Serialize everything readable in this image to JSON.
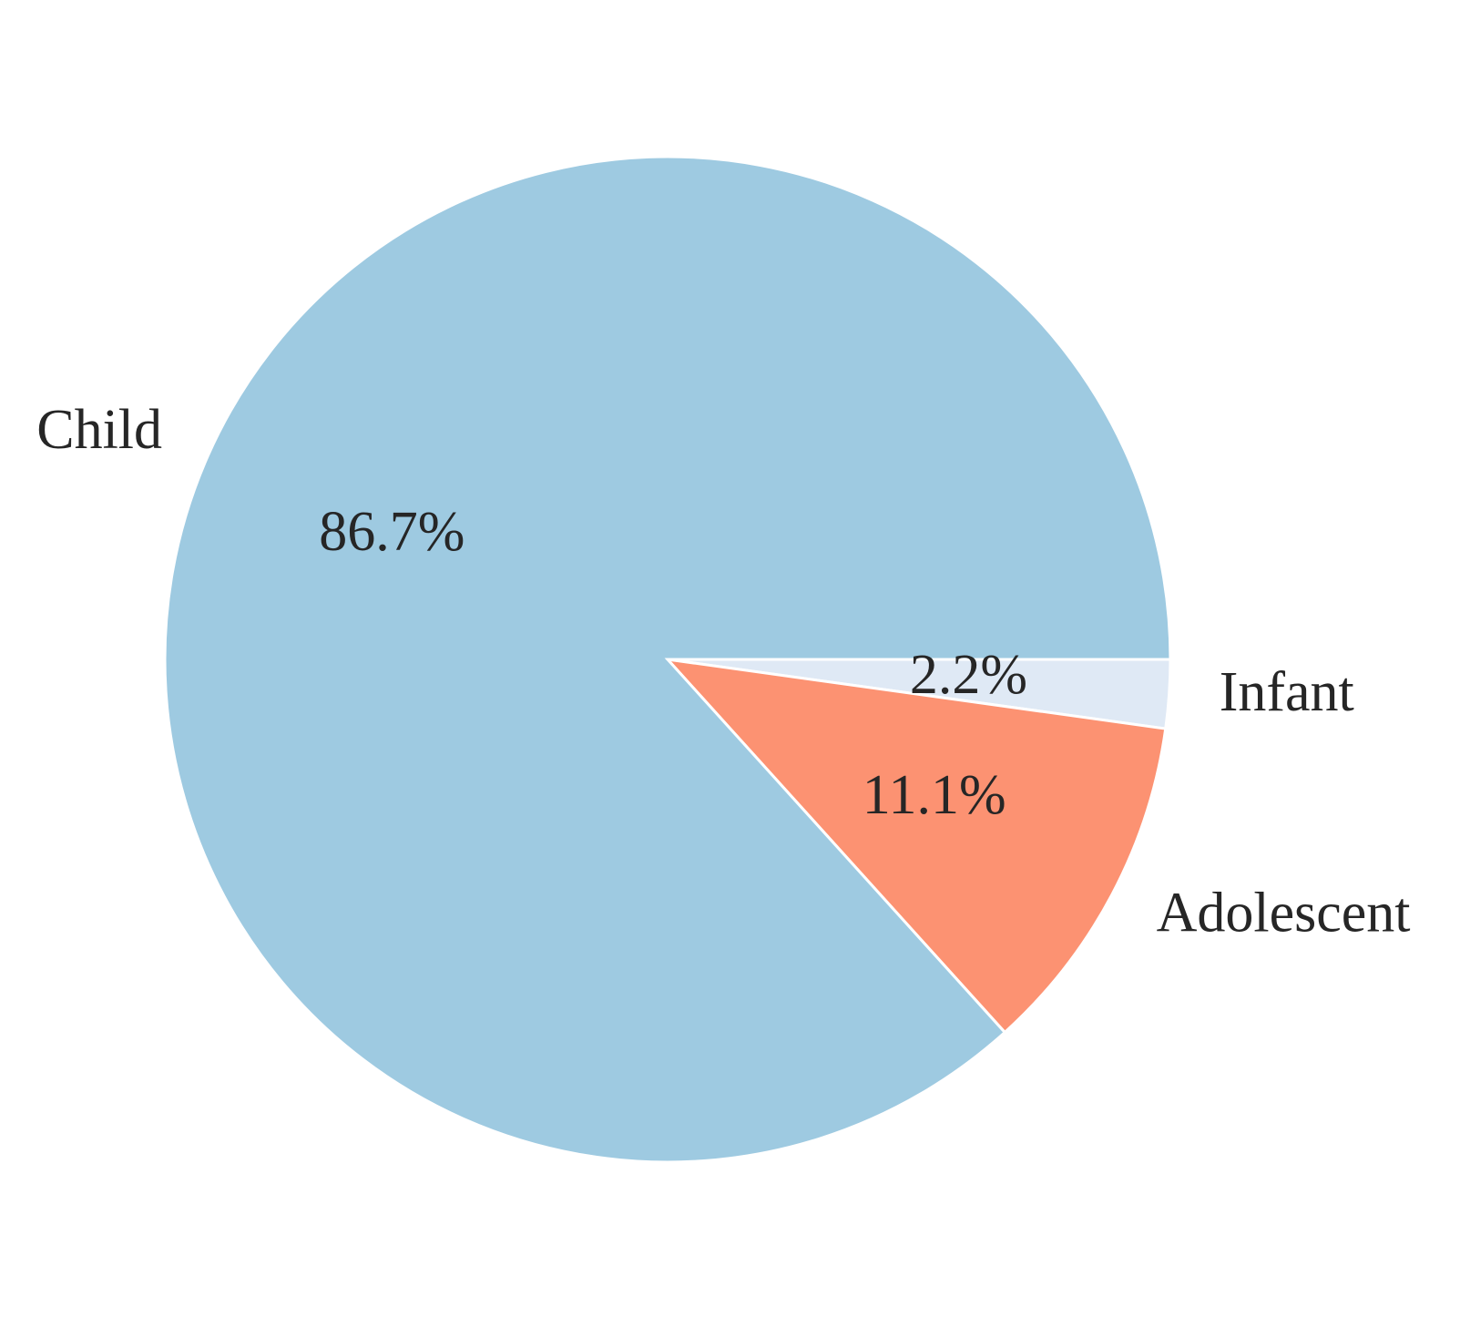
{
  "chart_data": {
    "type": "pie",
    "slices": [
      {
        "label": "Infant",
        "value": 2.2,
        "pct_label": "2.2%",
        "color": "#dfe9f5"
      },
      {
        "label": "Adolescent",
        "value": 11.1,
        "pct_label": "11.1%",
        "color": "#fc9272"
      },
      {
        "label": "Child",
        "value": 86.7,
        "pct_label": "86.7%",
        "color": "#9ecae1"
      }
    ],
    "start_angle": 0,
    "direction": "clockwise",
    "slice_edge_color": "#ffffff"
  }
}
